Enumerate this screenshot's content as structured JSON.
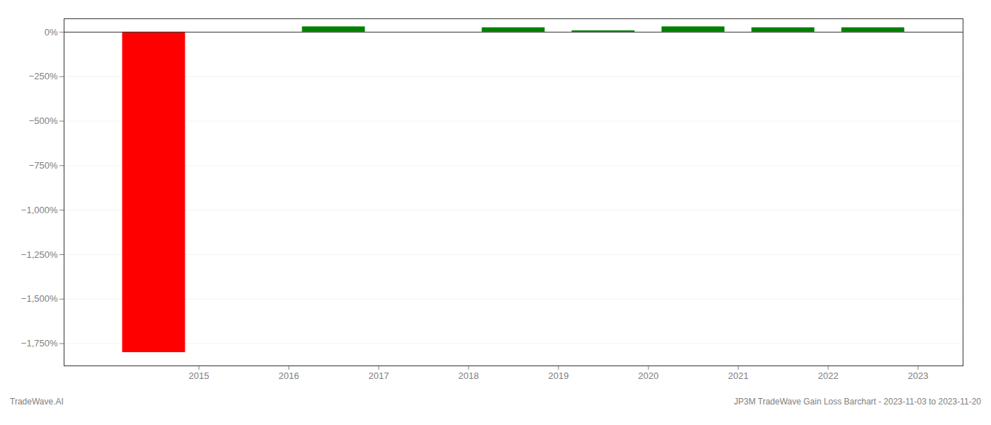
{
  "chart_data": {
    "type": "bar",
    "x": [
      2014.5,
      2016.5,
      2018.5,
      2019.5,
      2020.5,
      2021.5,
      2022.5
    ],
    "values": [
      -1800,
      30,
      25,
      8,
      30,
      25,
      25
    ],
    "colors": [
      "#ff0000",
      "#008000",
      "#008000",
      "#008000",
      "#008000",
      "#008000",
      "#008000"
    ],
    "xlim": [
      2013.5,
      2023.5
    ],
    "xticks": [
      2015,
      2016,
      2017,
      2018,
      2019,
      2020,
      2021,
      2022,
      2023
    ],
    "ylim": [
      -1875,
      75
    ],
    "yticks": [
      {
        "value": 0,
        "label": "0%"
      },
      {
        "value": -250,
        "label": "−250%"
      },
      {
        "value": -500,
        "label": "−500%"
      },
      {
        "value": -750,
        "label": "−750%"
      },
      {
        "value": -1000,
        "label": "−1,000%"
      },
      {
        "value": -1250,
        "label": "−1,250%"
      },
      {
        "value": -1500,
        "label": "−1,500%"
      },
      {
        "value": -1750,
        "label": "−1,750%"
      }
    ],
    "grid": true,
    "annotations": [
      "TradeWave.AI",
      "JP3M TradeWave Gain Loss Barchart - 2023-11-03 to 2023-11-20"
    ]
  }
}
